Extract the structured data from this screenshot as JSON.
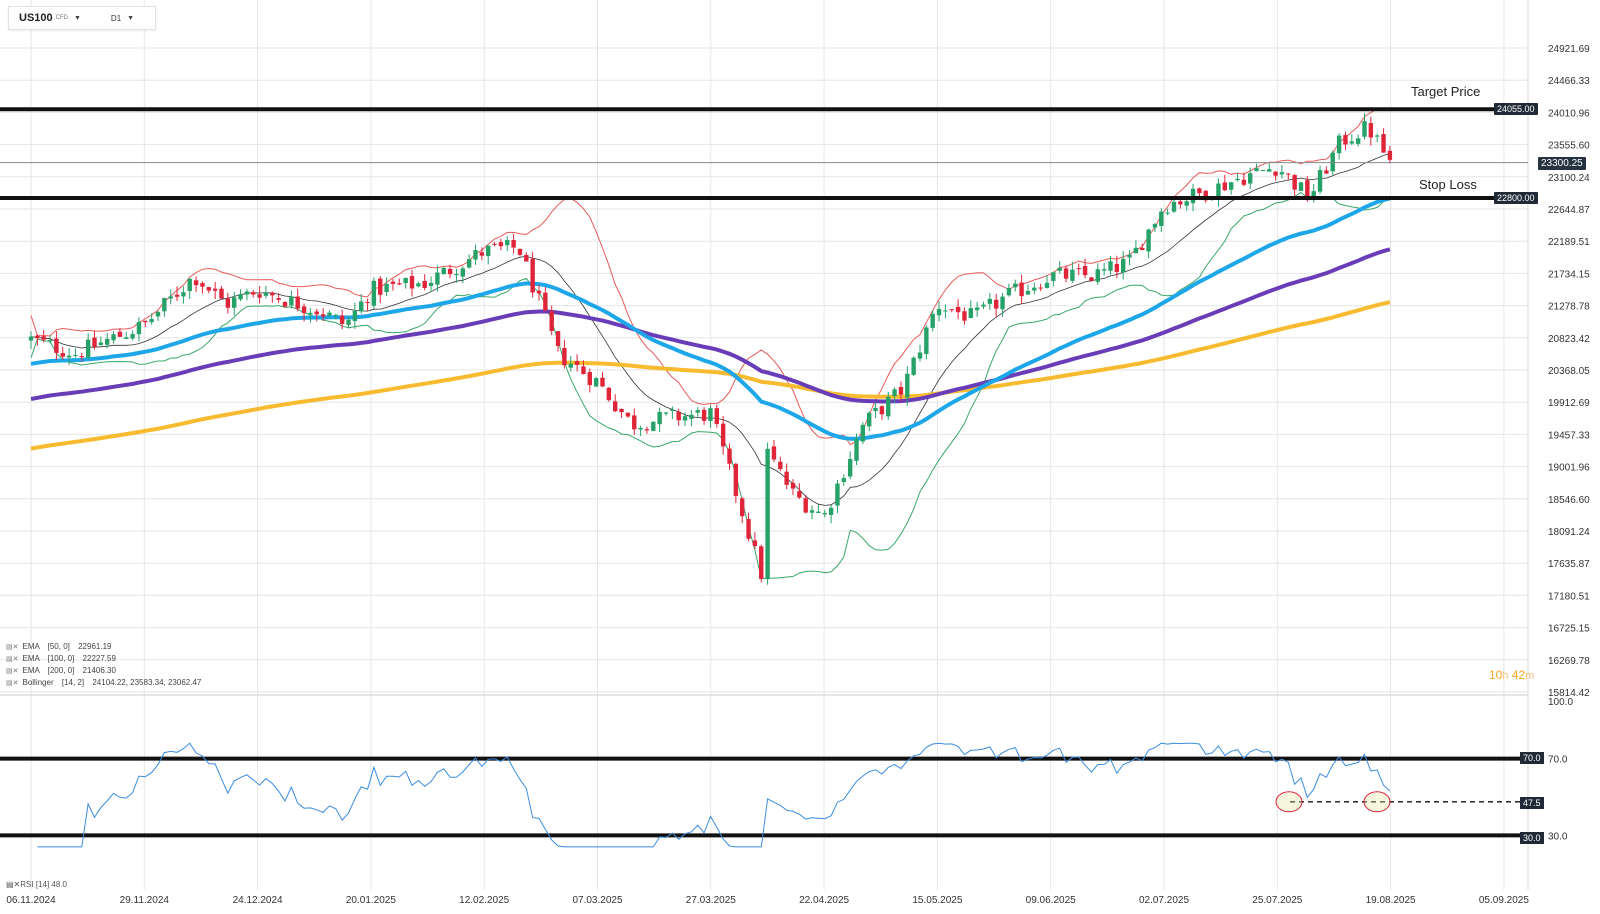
{
  "toolbar": {
    "symbol": "US100",
    "symbol_type": "CFD",
    "timeframe": "D1"
  },
  "price_axis": {
    "labels": [
      "24921.69",
      "24466.33",
      "24010.96",
      "23555.60",
      "23100.24",
      "22644.87",
      "22189.51",
      "21734.15",
      "21278.78",
      "20823.42",
      "20368.05",
      "19912.69",
      "19457.33",
      "19001.96",
      "18546.60",
      "18091.24",
      "17635.87",
      "17180.51",
      "16725.15",
      "16269.78",
      "15814.42"
    ]
  },
  "date_axis": {
    "labels": [
      "06.11.2024",
      "29.11.2024",
      "24.12.2024",
      "20.01.2025",
      "12.02.2025",
      "07.03.2025",
      "27.03.2025",
      "22.04.2025",
      "15.05.2025",
      "09.06.2025",
      "02.07.2025",
      "25.07.2025",
      "19.08.2025",
      "05.09.2025"
    ]
  },
  "annotations": {
    "target_label": "Target Price",
    "stop_label": "Stop Loss",
    "target_price": "24055.00",
    "stop_price": "22800.00",
    "current_price": "23300.25"
  },
  "indicators": {
    "ema50": {
      "name": "EMA",
      "params": "[50, 0]",
      "value": "22961.19"
    },
    "ema100": {
      "name": "EMA",
      "params": "[100, 0]",
      "value": "22227.59"
    },
    "ema200": {
      "name": "EMA",
      "params": "[200, 0]",
      "value": "21406.30"
    },
    "bollinger": {
      "name": "Bollinger",
      "params": "[14, 2]",
      "values": "24104.22,   23583.34,   23062.47"
    }
  },
  "timer": {
    "hours": "10",
    "h": "h",
    "minutes": "42",
    "m": "m"
  },
  "rsi": {
    "name": "RSI",
    "params": "[14]",
    "value": "48.0",
    "axis_labels": [
      "100.0",
      "70.0",
      "30.0"
    ],
    "level_70": "70.0",
    "level_30": "30.0",
    "level_mark": "47.5"
  },
  "colors": {
    "ema50": "#1ea7e8",
    "ema100": "#6a3db8",
    "ema200": "#f8bb2f",
    "bull": "#26a269",
    "bear": "#e0243a",
    "boll_upper": "#e85a5a",
    "boll_lower": "#3aa86a",
    "rsi": "#3b8de0"
  },
  "chart_data": {
    "type": "candlestick",
    "title": "US100 D1",
    "x_range": [
      "06.11.2024",
      "05.09.2025"
    ],
    "ylim": [
      15814.42,
      24921.69
    ],
    "horizontal_lines": [
      {
        "label": "Target Price",
        "price": 24055.0
      },
      {
        "label": "Stop Loss",
        "price": 22800.0
      },
      {
        "label": "current",
        "price": 23300.25
      }
    ],
    "close_series": {
      "x": [
        "06.11.2024",
        "15.11.2024",
        "29.11.2024",
        "10.12.2024",
        "17.12.2024",
        "24.12.2024",
        "08.01.2025",
        "14.01.2025",
        "20.01.2025",
        "31.01.2025",
        "12.02.2025",
        "19.02.2025",
        "27.02.2025",
        "07.03.2025",
        "13.03.2025",
        "20.03.2025",
        "27.03.2025",
        "03.04.2025",
        "08.04.2025",
        "09.04.2025",
        "15.04.2025",
        "22.04.2025",
        "30.04.2025",
        "08.05.2025",
        "15.05.2025",
        "23.05.2025",
        "30.05.2025",
        "09.06.2025",
        "18.06.2025",
        "25.06.2025",
        "02.07.2025",
        "11.07.2025",
        "18.07.2025",
        "25.07.2025",
        "01.08.2025",
        "08.08.2025",
        "14.08.2025",
        "19.08.2025"
      ],
      "values": [
        20800,
        20600,
        21000,
        21700,
        21300,
        21500,
        21200,
        21000,
        21500,
        21600,
        22050,
        22100,
        20600,
        20200,
        19600,
        19700,
        19750,
        18400,
        17400,
        19200,
        18600,
        18300,
        19600,
        20100,
        21300,
        21100,
        21400,
        21700,
        21700,
        21900,
        22700,
        22900,
        23100,
        23250,
        22800,
        23600,
        23800,
        23300
      ]
    },
    "series": [
      {
        "name": "EMA [50, 0]",
        "value": 22961.19
      },
      {
        "name": "EMA [100, 0]",
        "value": 22227.59
      },
      {
        "name": "EMA [200, 0]",
        "value": 21406.3
      },
      {
        "name": "Bollinger [14, 2]",
        "values": [
          24104.22,
          23583.34,
          23062.47
        ]
      }
    ],
    "rsi": {
      "name": "RSI [14]",
      "ylim": [
        0,
        100
      ],
      "levels": [
        70.0,
        30.0,
        47.5
      ],
      "last": 48.0
    }
  }
}
